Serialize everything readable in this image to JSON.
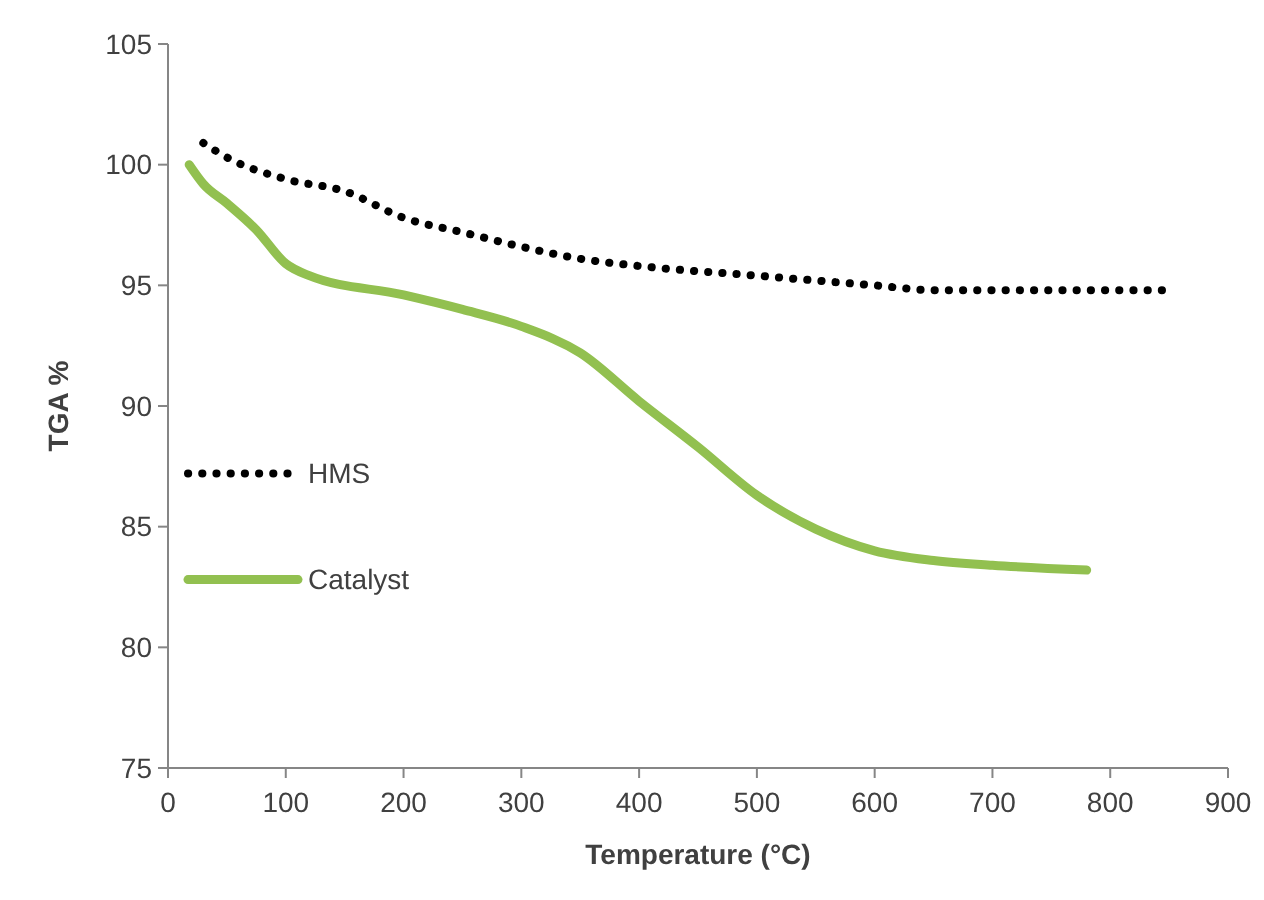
{
  "chart_data": {
    "type": "line",
    "xlabel": "Temperature (°C)",
    "ylabel": "TGA %",
    "xlim": [
      0,
      900
    ],
    "xticks": [
      0,
      100,
      200,
      300,
      400,
      500,
      600,
      700,
      800,
      900
    ],
    "ylim": [
      75,
      105
    ],
    "yticks": [
      75,
      80,
      85,
      90,
      95,
      100,
      105
    ],
    "grid": false,
    "legend": "left",
    "series": [
      {
        "name": "HMS",
        "color": "#000000",
        "line_style": "dotted",
        "x": [
          30,
          50,
          100,
          150,
          200,
          250,
          300,
          350,
          400,
          500,
          600,
          650,
          700,
          850
        ],
        "values": [
          100.9,
          100.3,
          99.4,
          98.9,
          97.8,
          97.2,
          96.6,
          96.1,
          95.8,
          95.4,
          95.0,
          94.8,
          94.8,
          94.8
        ]
      },
      {
        "name": "Catalyst",
        "color": "#92c050",
        "line_style": "solid",
        "x": [
          18,
          30,
          50,
          75,
          100,
          120,
          200,
          250,
          300,
          350,
          400,
          450,
          500,
          550,
          600,
          650,
          700,
          780
        ],
        "values": [
          100,
          99.2,
          98.4,
          97.3,
          95.9,
          95.4,
          94.6,
          94.0,
          93.3,
          92.2,
          90.2,
          88.3,
          86.3,
          84.9,
          84.0,
          83.6,
          83.4,
          83.2
        ]
      }
    ]
  }
}
